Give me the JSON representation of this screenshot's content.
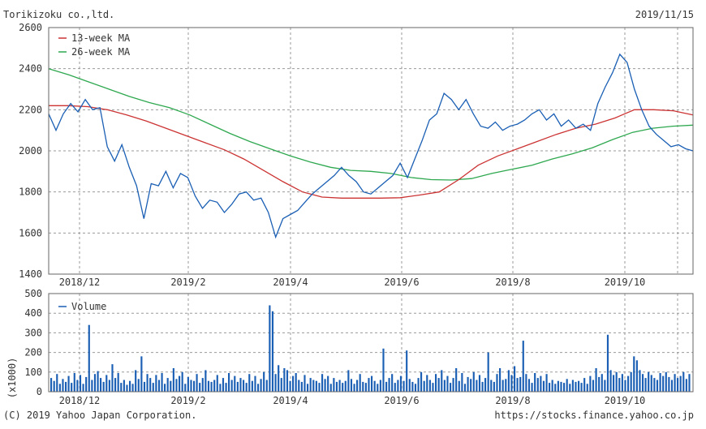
{
  "header": {
    "company": "Torikizoku co.,ltd.",
    "date": "2019/11/15"
  },
  "footer": {
    "copyright": "(C) 2019 Yahoo Japan Corporation.",
    "url": "https://stocks.finance.yahoo.co.jp"
  },
  "colors": {
    "price": "#1a5fb4",
    "ma13": "#cc3333",
    "ma26": "#2ea84f",
    "volume": "#1a5fb4",
    "grid": "#9a9a9a",
    "frame": "#666666"
  },
  "chart_data": [
    {
      "type": "line",
      "x_axis_labels": [
        "2018/12",
        "2019/2",
        "2019/4",
        "2019/6",
        "2019/8",
        "2019/10"
      ],
      "y_ticks": [
        1400,
        1600,
        1800,
        2000,
        2200,
        2400,
        2600
      ],
      "ylim": [
        1400,
        2600
      ],
      "grid": true,
      "legend": "top-left",
      "series": [
        {
          "name": "13-week MA",
          "color": "#cc3333",
          "values": [
            2220,
            2220,
            2215,
            2200,
            2175,
            2145,
            2110,
            2075,
            2040,
            2005,
            1960,
            1905,
            1850,
            1800,
            1775,
            1770,
            1770,
            1770,
            1772,
            1785,
            1800,
            1860,
            1930,
            1975,
            2010,
            2045,
            2080,
            2110,
            2130,
            2160,
            2200,
            2200,
            2195,
            2175
          ]
        },
        {
          "name": "26-week MA",
          "color": "#2ea84f",
          "values": [
            2400,
            2370,
            2335,
            2300,
            2265,
            2235,
            2210,
            2175,
            2130,
            2085,
            2045,
            2010,
            1975,
            1945,
            1920,
            1905,
            1900,
            1890,
            1870,
            1860,
            1858,
            1865,
            1890,
            1910,
            1930,
            1960,
            1985,
            2015,
            2055,
            2090,
            2110,
            2120,
            2125
          ]
        },
        {
          "name": "Price",
          "color": "#1a5fb4",
          "values": [
            2180,
            2100,
            2180,
            2230,
            2190,
            2250,
            2200,
            2210,
            2020,
            1950,
            2030,
            1920,
            1830,
            1670,
            1840,
            1830,
            1900,
            1820,
            1890,
            1870,
            1780,
            1720,
            1760,
            1750,
            1700,
            1740,
            1790,
            1800,
            1760,
            1770,
            1700,
            1580,
            1670,
            1690,
            1710,
            1750,
            1790,
            1820,
            1850,
            1880,
            1920,
            1880,
            1850,
            1800,
            1790,
            1820,
            1850,
            1880,
            1940,
            1870,
            1960,
            2050,
            2150,
            2180,
            2280,
            2250,
            2200,
            2250,
            2180,
            2120,
            2110,
            2140,
            2100,
            2120,
            2130,
            2150,
            2180,
            2200,
            2150,
            2180,
            2120,
            2150,
            2110,
            2130,
            2100,
            2230,
            2310,
            2380,
            2470,
            2430,
            2300,
            2200,
            2120,
            2080,
            2050,
            2020,
            2030,
            2010,
            2000
          ]
        }
      ]
    },
    {
      "type": "bar",
      "x_axis_labels": [
        "2018/12",
        "2019/2",
        "2019/4",
        "2019/6",
        "2019/8",
        "2019/10"
      ],
      "y_ticks": [
        0,
        100,
        200,
        300,
        400,
        500
      ],
      "ylim": [
        0,
        500
      ],
      "ylabel": "(x1000)",
      "grid": true,
      "legend": "top-left",
      "series": [
        {
          "name": "Volume",
          "color": "#1a5fb4",
          "values": [
            70,
            55,
            90,
            40,
            65,
            50,
            80,
            45,
            95,
            60,
            85,
            40,
            75,
            340,
            60,
            90,
            105,
            70,
            50,
            85,
            60,
            140,
            70,
            95,
            45,
            60,
            35,
            55,
            40,
            110,
            65,
            180,
            50,
            90,
            70,
            45,
            85,
            60,
            95,
            40,
            70,
            55,
            120,
            65,
            80,
            100,
            40,
            75,
            60,
            55,
            90,
            45,
            70,
            110,
            55,
            50,
            60,
            85,
            40,
            70,
            45,
            95,
            60,
            80,
            50,
            70,
            60,
            45,
            90,
            55,
            80,
            40,
            65,
            100,
            60,
            440,
            410,
            90,
            135,
            70,
            120,
            110,
            55,
            80,
            95,
            60,
            50,
            85,
            40,
            70,
            60,
            55,
            45,
            90,
            65,
            80,
            40,
            70,
            50,
            60,
            45,
            55,
            110,
            65,
            40,
            60,
            90,
            50,
            45,
            70,
            80,
            55,
            40,
            60,
            220,
            50,
            70,
            90,
            45,
            60,
            80,
            55,
            210,
            65,
            50,
            40,
            70,
            100,
            55,
            85,
            60,
            45,
            90,
            70,
            110,
            60,
            80,
            45,
            70,
            120,
            55,
            95,
            40,
            75,
            65,
            100,
            60,
            85,
            50,
            70,
            200,
            60,
            50,
            90,
            120,
            60,
            65,
            110,
            85,
            130,
            70,
            75,
            260,
            90,
            65,
            45,
            95,
            70,
            80,
            55,
            90,
            45,
            60,
            40,
            55,
            50,
            45,
            65,
            40,
            60,
            50,
            55,
            45,
            70,
            40,
            80,
            60,
            120,
            75,
            90,
            60,
            290,
            110,
            85,
            100,
            70,
            90,
            60,
            80,
            100,
            180,
            160,
            110,
            90,
            70,
            100,
            85,
            70,
            60,
            95,
            80,
            100,
            75,
            60,
            90,
            70,
            80,
            100,
            65,
            90
          ]
        }
      ]
    }
  ]
}
